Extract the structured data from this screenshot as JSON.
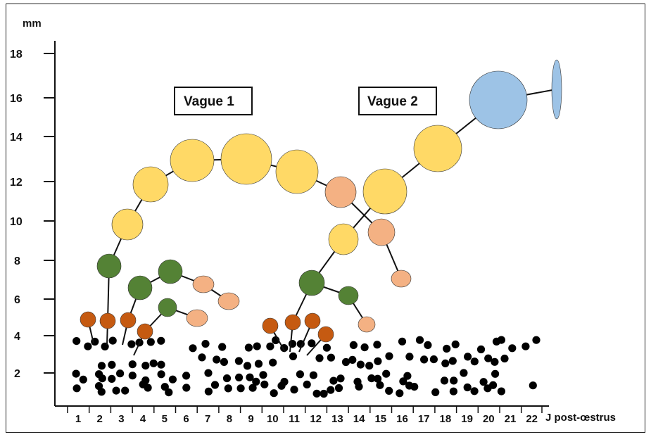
{
  "diagram": {
    "y_unit": "mm",
    "x_unit": "J post-œstrus",
    "y_ticks": [
      "2",
      "4",
      "6",
      "8",
      "10",
      "12",
      "14",
      "16",
      "18"
    ],
    "x_ticks": [
      "1",
      "2",
      "3",
      "4",
      "5",
      "6",
      "7",
      "8",
      "9",
      "10",
      "11",
      "12",
      "13",
      "14",
      "15",
      "16",
      "17",
      "18",
      "19",
      "20",
      "21",
      "22"
    ],
    "waves": [
      {
        "label": "Vague 1"
      },
      {
        "label": "Vague 2"
      }
    ],
    "colors": {
      "small_follicle": "#000000",
      "recruited": "#c55a11",
      "selected": "#548235",
      "dominant": "#ffd966",
      "atretic": "#f4b183",
      "preovulatory": "#9dc3e6",
      "ovulation": "#9dc3e6"
    }
  }
}
